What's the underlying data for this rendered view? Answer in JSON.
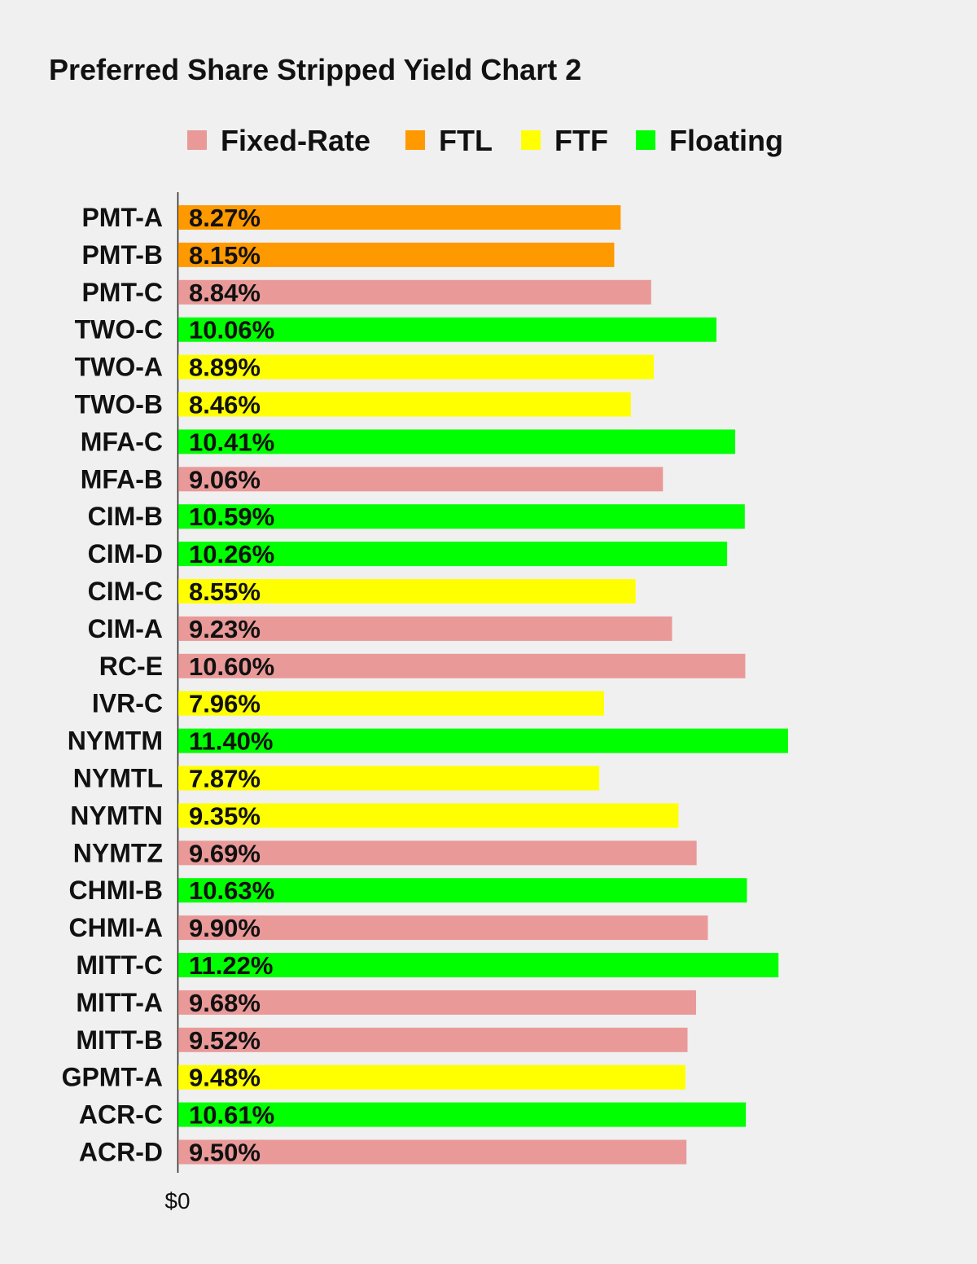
{
  "chart_data": {
    "type": "bar",
    "orientation": "horizontal",
    "title": "Preferred Share Stripped Yield Chart 2",
    "xlabel": "",
    "ylabel": "",
    "x_tick_labels": [
      "$0"
    ],
    "xlim": [
      0,
      13.5
    ],
    "grid": false,
    "legend_position": "top",
    "legend": [
      {
        "name": "Fixed-Rate",
        "color": "#ea9999"
      },
      {
        "name": "FTL",
        "color": "#ff9900"
      },
      {
        "name": "FTF",
        "color": "#ffff00"
      },
      {
        "name": "Floating",
        "color": "#00ff00"
      }
    ],
    "categories": [
      "PMT-A",
      "PMT-B",
      "PMT-C",
      "TWO-C",
      "TWO-A",
      "TWO-B",
      "MFA-C",
      "MFA-B",
      "CIM-B",
      "CIM-D",
      "CIM-C",
      "CIM-A",
      "RC-E",
      "IVR-C",
      "NYMTM",
      "NYMTL",
      "NYMTN",
      "NYMTZ",
      "CHMI-B",
      "CHMI-A",
      "MITT-C",
      "MITT-A",
      "MITT-B",
      "GPMT-A",
      "ACR-C",
      "ACR-D"
    ],
    "values": [
      8.27,
      8.15,
      8.84,
      10.06,
      8.89,
      8.46,
      10.41,
      9.06,
      10.59,
      10.26,
      8.55,
      9.23,
      10.6,
      7.96,
      11.4,
      7.87,
      9.35,
      9.69,
      10.63,
      9.9,
      11.22,
      9.68,
      9.52,
      9.48,
      10.61,
      9.5
    ],
    "value_labels": [
      "8.27%",
      "8.15%",
      "8.84%",
      "10.06%",
      "8.89%",
      "8.46%",
      "10.41%",
      "9.06%",
      "10.59%",
      "10.26%",
      "8.55%",
      "9.23%",
      "10.60%",
      "7.96%",
      "11.40%",
      "7.87%",
      "9.35%",
      "9.69%",
      "10.63%",
      "9.90%",
      "11.22%",
      "9.68%",
      "9.52%",
      "9.48%",
      "10.61%",
      "9.50%"
    ],
    "types": [
      "FTL",
      "FTL",
      "Fixed-Rate",
      "Floating",
      "FTF",
      "FTF",
      "Floating",
      "Fixed-Rate",
      "Floating",
      "Floating",
      "FTF",
      "Fixed-Rate",
      "Fixed-Rate",
      "FTF",
      "Floating",
      "FTF",
      "FTF",
      "Fixed-Rate",
      "Floating",
      "Fixed-Rate",
      "Floating",
      "Fixed-Rate",
      "Fixed-Rate",
      "FTF",
      "Floating",
      "Fixed-Rate"
    ]
  }
}
